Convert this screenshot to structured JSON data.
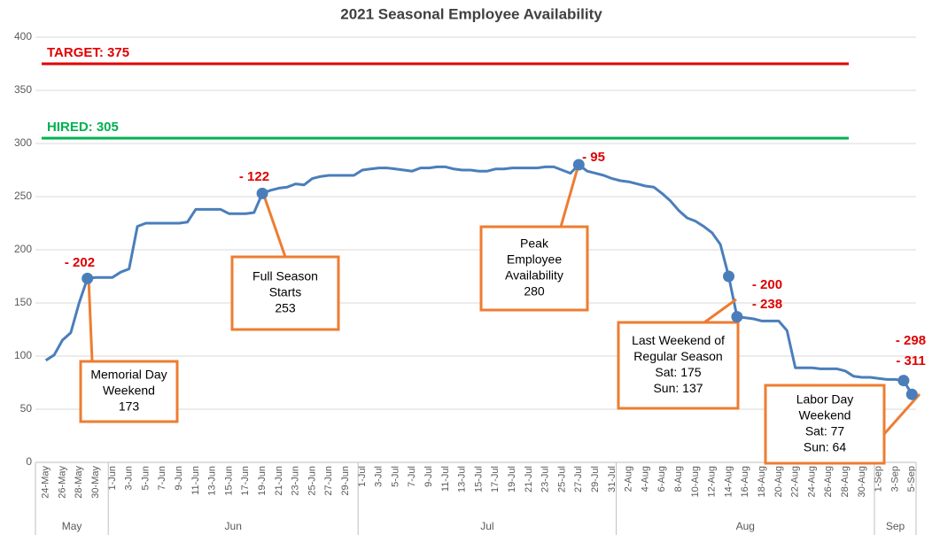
{
  "chart_data": {
    "type": "line",
    "title": "2021 Seasonal Employee Availability",
    "categories": [
      "24-May",
      null,
      "26-May",
      null,
      "28-May",
      null,
      "30-May",
      null,
      "1-Jun",
      null,
      "3-Jun",
      null,
      "5-Jun",
      null,
      "7-Jun",
      null,
      "9-Jun",
      null,
      "11-Jun",
      null,
      "13-Jun",
      null,
      "15-Jun",
      null,
      "17-Jun",
      null,
      "19-Jun",
      null,
      "21-Jun",
      null,
      "23-Jun",
      null,
      "25-Jun",
      null,
      "27-Jun",
      null,
      "29-Jun",
      null,
      "1-Jul",
      null,
      "3-Jul",
      null,
      "5-Jul",
      null,
      "7-Jul",
      null,
      "9-Jul",
      null,
      "11-Jul",
      null,
      "13-Jul",
      null,
      "15-Jul",
      null,
      "17-Jul",
      null,
      "19-Jul",
      null,
      "21-Jul",
      null,
      "23-Jul",
      null,
      "25-Jul",
      null,
      "27-Jul",
      null,
      "29-Jul",
      null,
      "31-Jul",
      null,
      "2-Aug",
      null,
      "4-Aug",
      null,
      "6-Aug",
      null,
      "8-Aug",
      null,
      "10-Aug",
      null,
      "12-Aug",
      null,
      "14-Aug",
      null,
      "16-Aug",
      null,
      "18-Aug",
      null,
      "20-Aug",
      null,
      "22-Aug",
      null,
      "24-Aug",
      null,
      "26-Aug",
      null,
      "28-Aug",
      null,
      "30-Aug",
      null,
      "1-Sep",
      null,
      "3-Sep",
      null,
      "5-Sep"
    ],
    "series": [
      {
        "color": "#4a7ebb",
        "values": [
          96,
          101,
          115,
          122,
          150,
          173,
          174,
          174,
          174,
          179,
          182,
          222,
          225,
          225,
          225,
          225,
          225,
          226,
          238,
          238,
          238,
          238,
          234,
          234,
          234,
          235,
          253,
          256,
          258,
          259,
          262,
          261,
          267,
          269,
          270,
          270,
          270,
          270,
          275,
          276,
          277,
          277,
          276,
          275,
          274,
          277,
          277,
          278,
          278,
          276,
          275,
          275,
          274,
          274,
          276,
          276,
          277,
          277,
          277,
          277,
          278,
          278,
          275,
          272,
          280,
          274,
          272,
          270,
          267,
          265,
          264,
          262,
          260,
          259,
          253,
          246,
          237,
          230,
          227,
          222,
          216,
          205,
          175,
          137,
          136,
          135,
          133,
          133,
          133,
          124,
          89,
          89,
          89,
          88,
          88,
          88,
          86,
          81,
          80,
          80,
          79,
          78,
          78,
          77,
          64
        ]
      }
    ],
    "month_groups": [
      {
        "label": "May",
        "days": 8
      },
      {
        "label": "Jun",
        "days": 30
      },
      {
        "label": "Jul",
        "days": 31
      },
      {
        "label": "Aug",
        "days": 31
      },
      {
        "label": "Sep",
        "days": 5
      }
    ],
    "ylim": [
      0,
      400
    ],
    "yticks": [
      0,
      50,
      100,
      150,
      200,
      250,
      300,
      350,
      400
    ],
    "grid": true,
    "reference_lines": [
      {
        "label": "TARGET: 375",
        "value": 375,
        "color": "#e00000"
      },
      {
        "label": "HIRED: 305",
        "value": 305,
        "color": "#00b050"
      }
    ],
    "markers": [
      5,
      26,
      64,
      82,
      83,
      103,
      104
    ],
    "deltas": [
      "- 202",
      "- 122",
      "- 95",
      "- 200",
      "- 238",
      "- 298",
      "- 311"
    ],
    "callouts": [
      {
        "lines": [
          "Memorial Day",
          "Weekend",
          "173"
        ]
      },
      {
        "lines": [
          "Full Season",
          "Starts",
          "253"
        ]
      },
      {
        "lines": [
          "Peak",
          "Employee",
          "Availability",
          "280"
        ]
      },
      {
        "lines": [
          "Last Weekend of",
          "Regular Season",
          "Sat: 175",
          "Sun: 137"
        ]
      },
      {
        "lines": [
          "Labor Day",
          "Weekend",
          "Sat: 77",
          "Sun: 64"
        ]
      }
    ]
  }
}
